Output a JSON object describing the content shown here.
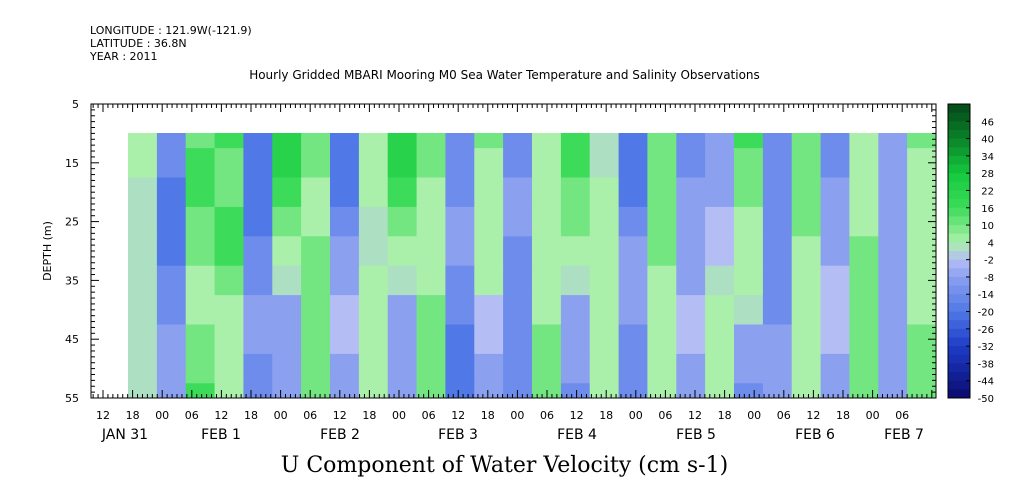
{
  "header": {
    "longitude": "LONGITUDE : 121.9W(-121.9)",
    "latitude": "LATITUDE : 36.8N",
    "year": "YEAR : 2011"
  },
  "chart_data": {
    "type": "heatmap",
    "title": "Hourly Gridded MBARI Mooring M0 Sea Water Temperature and Salinity Observations",
    "xlabel": "U Component of Water Velocity (cm s-1)",
    "ylabel": "DEPTH (m)",
    "ylim": [
      5,
      55
    ],
    "y_inverted": true,
    "y_ticks": [
      5,
      15,
      25,
      35,
      45,
      55
    ],
    "x_hour_ticks": [
      "12",
      "18",
      "00",
      "06",
      "12",
      "18",
      "00",
      "06",
      "12",
      "18",
      "00",
      "06",
      "12",
      "18",
      "00",
      "06",
      "12",
      "18",
      "00",
      "06",
      "12",
      "18",
      "00",
      "06",
      "12",
      "18",
      "00",
      "06"
    ],
    "x_date_labels": [
      "JAN 31",
      "FEB 1",
      "FEB 2",
      "FEB 3",
      "FEB 4",
      "FEB 5",
      "FEB 6",
      "FEB 7"
    ],
    "colorbar": {
      "labels": [
        "46",
        "40",
        "34",
        "28",
        "22",
        "16",
        "10",
        "4",
        "-2",
        "-8",
        "-14",
        "-20",
        "-26",
        "-32",
        "-38",
        "-44",
        "-50"
      ],
      "range": [
        -50,
        52
      ],
      "step": 3
    },
    "data_rows_depths": [
      10,
      15,
      20,
      25,
      30,
      35,
      40,
      45,
      50,
      55
    ],
    "data_time_hours": [
      0,
      6,
      12,
      18,
      24,
      30,
      36,
      42,
      48,
      54,
      60,
      66,
      72,
      78,
      84,
      90,
      96,
      102,
      108,
      114,
      120,
      126,
      132,
      138,
      144,
      150,
      156,
      162
    ],
    "values_note_rows_by_depth": [
      [
        4,
        -14,
        10,
        16,
        -20,
        22,
        10,
        -20,
        4,
        22,
        10,
        -14,
        10,
        -14,
        4,
        16,
        2,
        -20,
        10,
        -14,
        -8,
        16,
        -14,
        10,
        -14,
        4,
        -8,
        10
      ],
      [
        4,
        -14,
        16,
        10,
        -20,
        22,
        10,
        -20,
        4,
        22,
        10,
        -14,
        4,
        -14,
        4,
        16,
        2,
        -20,
        10,
        -14,
        -8,
        10,
        -14,
        10,
        -14,
        4,
        -8,
        4
      ],
      [
        2,
        -20,
        16,
        10,
        -20,
        16,
        4,
        -20,
        4,
        16,
        4,
        -14,
        4,
        -8,
        4,
        10,
        4,
        -20,
        10,
        -8,
        -8,
        10,
        -14,
        10,
        -8,
        4,
        -8,
        4
      ],
      [
        2,
        -20,
        10,
        16,
        -20,
        10,
        4,
        -14,
        2,
        10,
        4,
        -8,
        4,
        -8,
        4,
        10,
        4,
        -14,
        10,
        -8,
        -2,
        4,
        -14,
        10,
        -8,
        4,
        -8,
        4
      ],
      [
        2,
        -20,
        10,
        16,
        -14,
        4,
        10,
        -8,
        2,
        4,
        4,
        -8,
        4,
        -14,
        4,
        4,
        4,
        -8,
        10,
        -8,
        -2,
        4,
        -14,
        4,
        -8,
        10,
        -8,
        4
      ],
      [
        2,
        -14,
        4,
        10,
        -14,
        2,
        10,
        -8,
        4,
        2,
        4,
        -14,
        4,
        -14,
        4,
        2,
        4,
        -8,
        4,
        -8,
        2,
        4,
        -14,
        4,
        -2,
        10,
        -8,
        4
      ],
      [
        2,
        -14,
        4,
        4,
        -8,
        -8,
        10,
        -2,
        4,
        -8,
        10,
        -14,
        -2,
        -14,
        4,
        -8,
        4,
        -8,
        4,
        -2,
        4,
        2,
        -14,
        4,
        -2,
        10,
        -8,
        4
      ],
      [
        2,
        -8,
        10,
        4,
        -8,
        -8,
        10,
        -2,
        4,
        -8,
        10,
        -20,
        -2,
        -14,
        10,
        -8,
        4,
        -14,
        4,
        -2,
        4,
        -8,
        -8,
        4,
        -2,
        10,
        -8,
        10
      ],
      [
        2,
        -8,
        10,
        4,
        -14,
        -8,
        10,
        -8,
        4,
        -8,
        10,
        -20,
        -8,
        -14,
        10,
        -8,
        4,
        -14,
        4,
        -8,
        4,
        -8,
        -8,
        4,
        -8,
        10,
        -8,
        10
      ],
      [
        2,
        -8,
        16,
        4,
        -14,
        -8,
        10,
        -8,
        4,
        -8,
        10,
        -20,
        -8,
        -14,
        10,
        -14,
        4,
        -14,
        4,
        -8,
        4,
        -14,
        -8,
        4,
        -8,
        10,
        -8,
        10
      ]
    ]
  }
}
